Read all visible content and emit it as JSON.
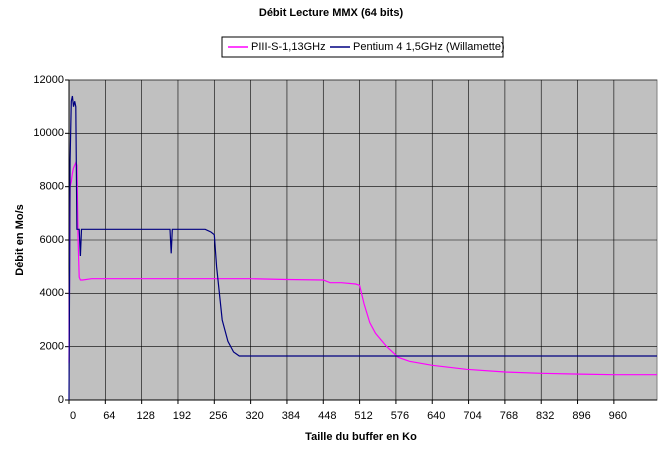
{
  "chart_data": {
    "type": "line",
    "title": "Débit Lecture MMX (64 bits)",
    "x_label": "Taille du buffer en Ko",
    "y_label": "Débit en Mo/s",
    "xlim": [
      0,
      1036
    ],
    "ylim": [
      0,
      12000
    ],
    "xticks": [
      0,
      64,
      128,
      192,
      256,
      320,
      384,
      448,
      512,
      576,
      640,
      704,
      768,
      832,
      896,
      960
    ],
    "yticks": [
      0,
      2000,
      4000,
      6000,
      8000,
      10000,
      12000
    ],
    "grid": true,
    "legend": "top",
    "series": [
      {
        "name": "PIII-S-1,13GHz",
        "color": "#ff00ff",
        "x": [
          0,
          2,
          4,
          6,
          8,
          12,
          14,
          16,
          18,
          20,
          24,
          40,
          64,
          128,
          192,
          256,
          320,
          384,
          448,
          460,
          480,
          505,
          512,
          520,
          530,
          540,
          560,
          580,
          600,
          640,
          700,
          768,
          832,
          900,
          960,
          1036
        ],
        "values": [
          1400,
          8000,
          8200,
          8500,
          8700,
          8900,
          8800,
          6000,
          4600,
          4500,
          4500,
          4550,
          4550,
          4550,
          4550,
          4550,
          4550,
          4520,
          4500,
          4400,
          4400,
          4350,
          4300,
          3600,
          2900,
          2500,
          2000,
          1600,
          1450,
          1300,
          1150,
          1050,
          1000,
          970,
          950,
          950
        ]
      },
      {
        "name": "Pentium 4 1,5GHz (Willamette)",
        "color": "#000080",
        "x": [
          0,
          2,
          4,
          6,
          8,
          10,
          12,
          14,
          18,
          20,
          22,
          26,
          64,
          128,
          178,
          180,
          182,
          192,
          240,
          250,
          256,
          260,
          265,
          270,
          280,
          290,
          300,
          384,
          512,
          640,
          768,
          896,
          1036
        ],
        "values": [
          0,
          9000,
          11200,
          11400,
          11000,
          11200,
          11000,
          6400,
          6400,
          5400,
          6400,
          6400,
          6400,
          6400,
          6400,
          5500,
          6400,
          6400,
          6400,
          6300,
          6200,
          5000,
          4000,
          3000,
          2200,
          1800,
          1650,
          1650,
          1650,
          1650,
          1650,
          1650,
          1650
        ]
      }
    ]
  }
}
